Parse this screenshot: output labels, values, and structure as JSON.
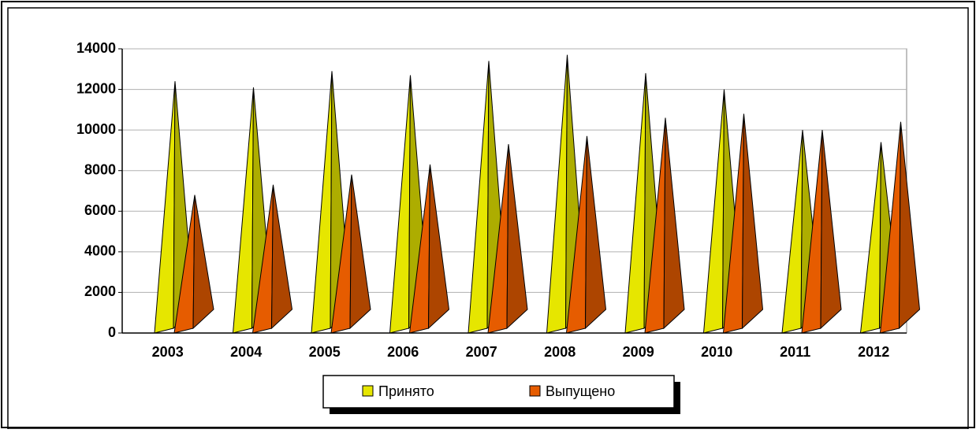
{
  "chart_data": {
    "type": "bar",
    "categories": [
      "2003",
      "2004",
      "2005",
      "2006",
      "2007",
      "2008",
      "2009",
      "2010",
      "2011",
      "2012"
    ],
    "series": [
      {
        "name": "Принято",
        "color": "#e6e600",
        "values": [
          12400,
          12100,
          12900,
          12700,
          13400,
          13700,
          12800,
          12000,
          10000,
          9400
        ]
      },
      {
        "name": "Выпущено",
        "color": "#e65c00",
        "values": [
          6800,
          7300,
          7800,
          8300,
          9300,
          9700,
          10600,
          10800,
          10000,
          10400
        ]
      }
    ],
    "ylim": [
      0,
      14000
    ],
    "yticks": [
      0,
      2000,
      4000,
      6000,
      8000,
      10000,
      12000,
      14000
    ],
    "grid": true,
    "legend": "bottom"
  }
}
